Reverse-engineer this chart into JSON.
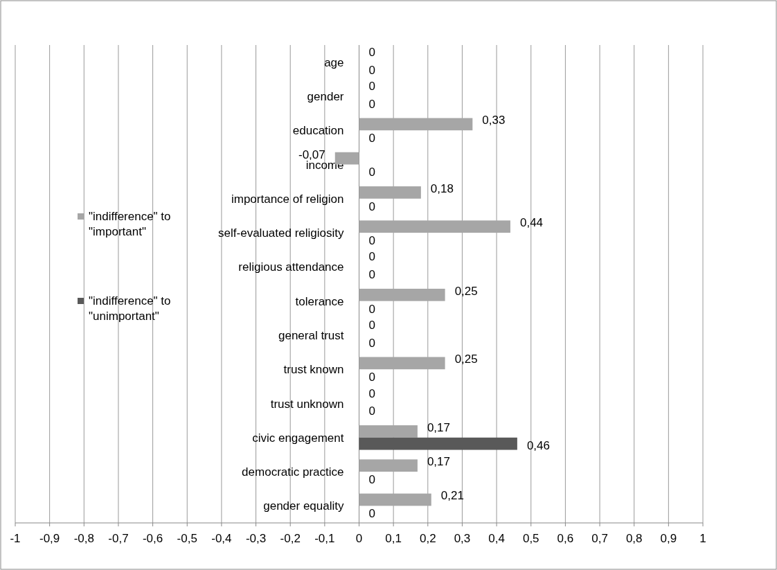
{
  "chart_data": {
    "type": "bar",
    "orientation": "horizontal",
    "categories": [
      "age",
      "gender",
      "education",
      "income",
      "importance of religion",
      "self-evaluated religiosity",
      "religious attendance",
      "tolerance",
      "general trust",
      "trust known",
      "trust unknown",
      "civic engagement",
      "democratic practice",
      "gender equality"
    ],
    "series": [
      {
        "name": "\"indifference\" to \"important\"",
        "color": "#a6a6a6",
        "values": [
          0,
          0,
          0.33,
          -0.07,
          0.18,
          0.44,
          0,
          0.25,
          0,
          0.25,
          0,
          0.17,
          0.17,
          0.21
        ],
        "value_labels": [
          "0",
          "0",
          "0,33",
          "-0,07",
          "0,18",
          "0,44",
          "0",
          "0,25",
          "0",
          "0,25",
          "0",
          "0,17",
          "0,17",
          "0,21"
        ]
      },
      {
        "name": "\"indifference\" to \"unimportant\"",
        "color": "#595959",
        "values": [
          0,
          0,
          0,
          0,
          0,
          0,
          0,
          0,
          0,
          0,
          0,
          0.46,
          0,
          0
        ],
        "value_labels": [
          "0",
          "0",
          "0",
          "0",
          "0",
          "0",
          "0",
          "0",
          "0",
          "0",
          "0",
          "0,46",
          "0",
          "0"
        ]
      }
    ],
    "xlim": [
      -1,
      1
    ],
    "xticks": [
      -1,
      {
        "value": -0.9,
        "label": "-0,9"
      },
      {
        "value": -0.8,
        "label": "-0,8"
      },
      {
        "value": -0.7,
        "label": "-0,7"
      },
      {
        "value": -0.6,
        "label": "-0,6"
      },
      {
        "value": -0.5,
        "label": "-0,5"
      },
      {
        "value": -0.4,
        "label": "-0,4"
      },
      {
        "value": -0.3,
        "label": "-0,3"
      },
      {
        "value": -0.2,
        "label": "-0,2"
      },
      {
        "value": -0.1,
        "label": "-0,1"
      },
      0,
      {
        "value": 0.1,
        "label": "0,1"
      },
      {
        "value": 0.2,
        "label": "0,2"
      },
      {
        "value": 0.3,
        "label": "0,3"
      },
      {
        "value": 0.4,
        "label": "0,4"
      },
      {
        "value": 0.5,
        "label": "0,5"
      },
      {
        "value": 0.6,
        "label": "0,6"
      },
      {
        "value": 0.7,
        "label": "0,7"
      },
      {
        "value": 0.8,
        "label": "0,8"
      },
      {
        "value": 0.9,
        "label": "0,9"
      },
      1
    ],
    "grid": "x",
    "legend": "left"
  }
}
